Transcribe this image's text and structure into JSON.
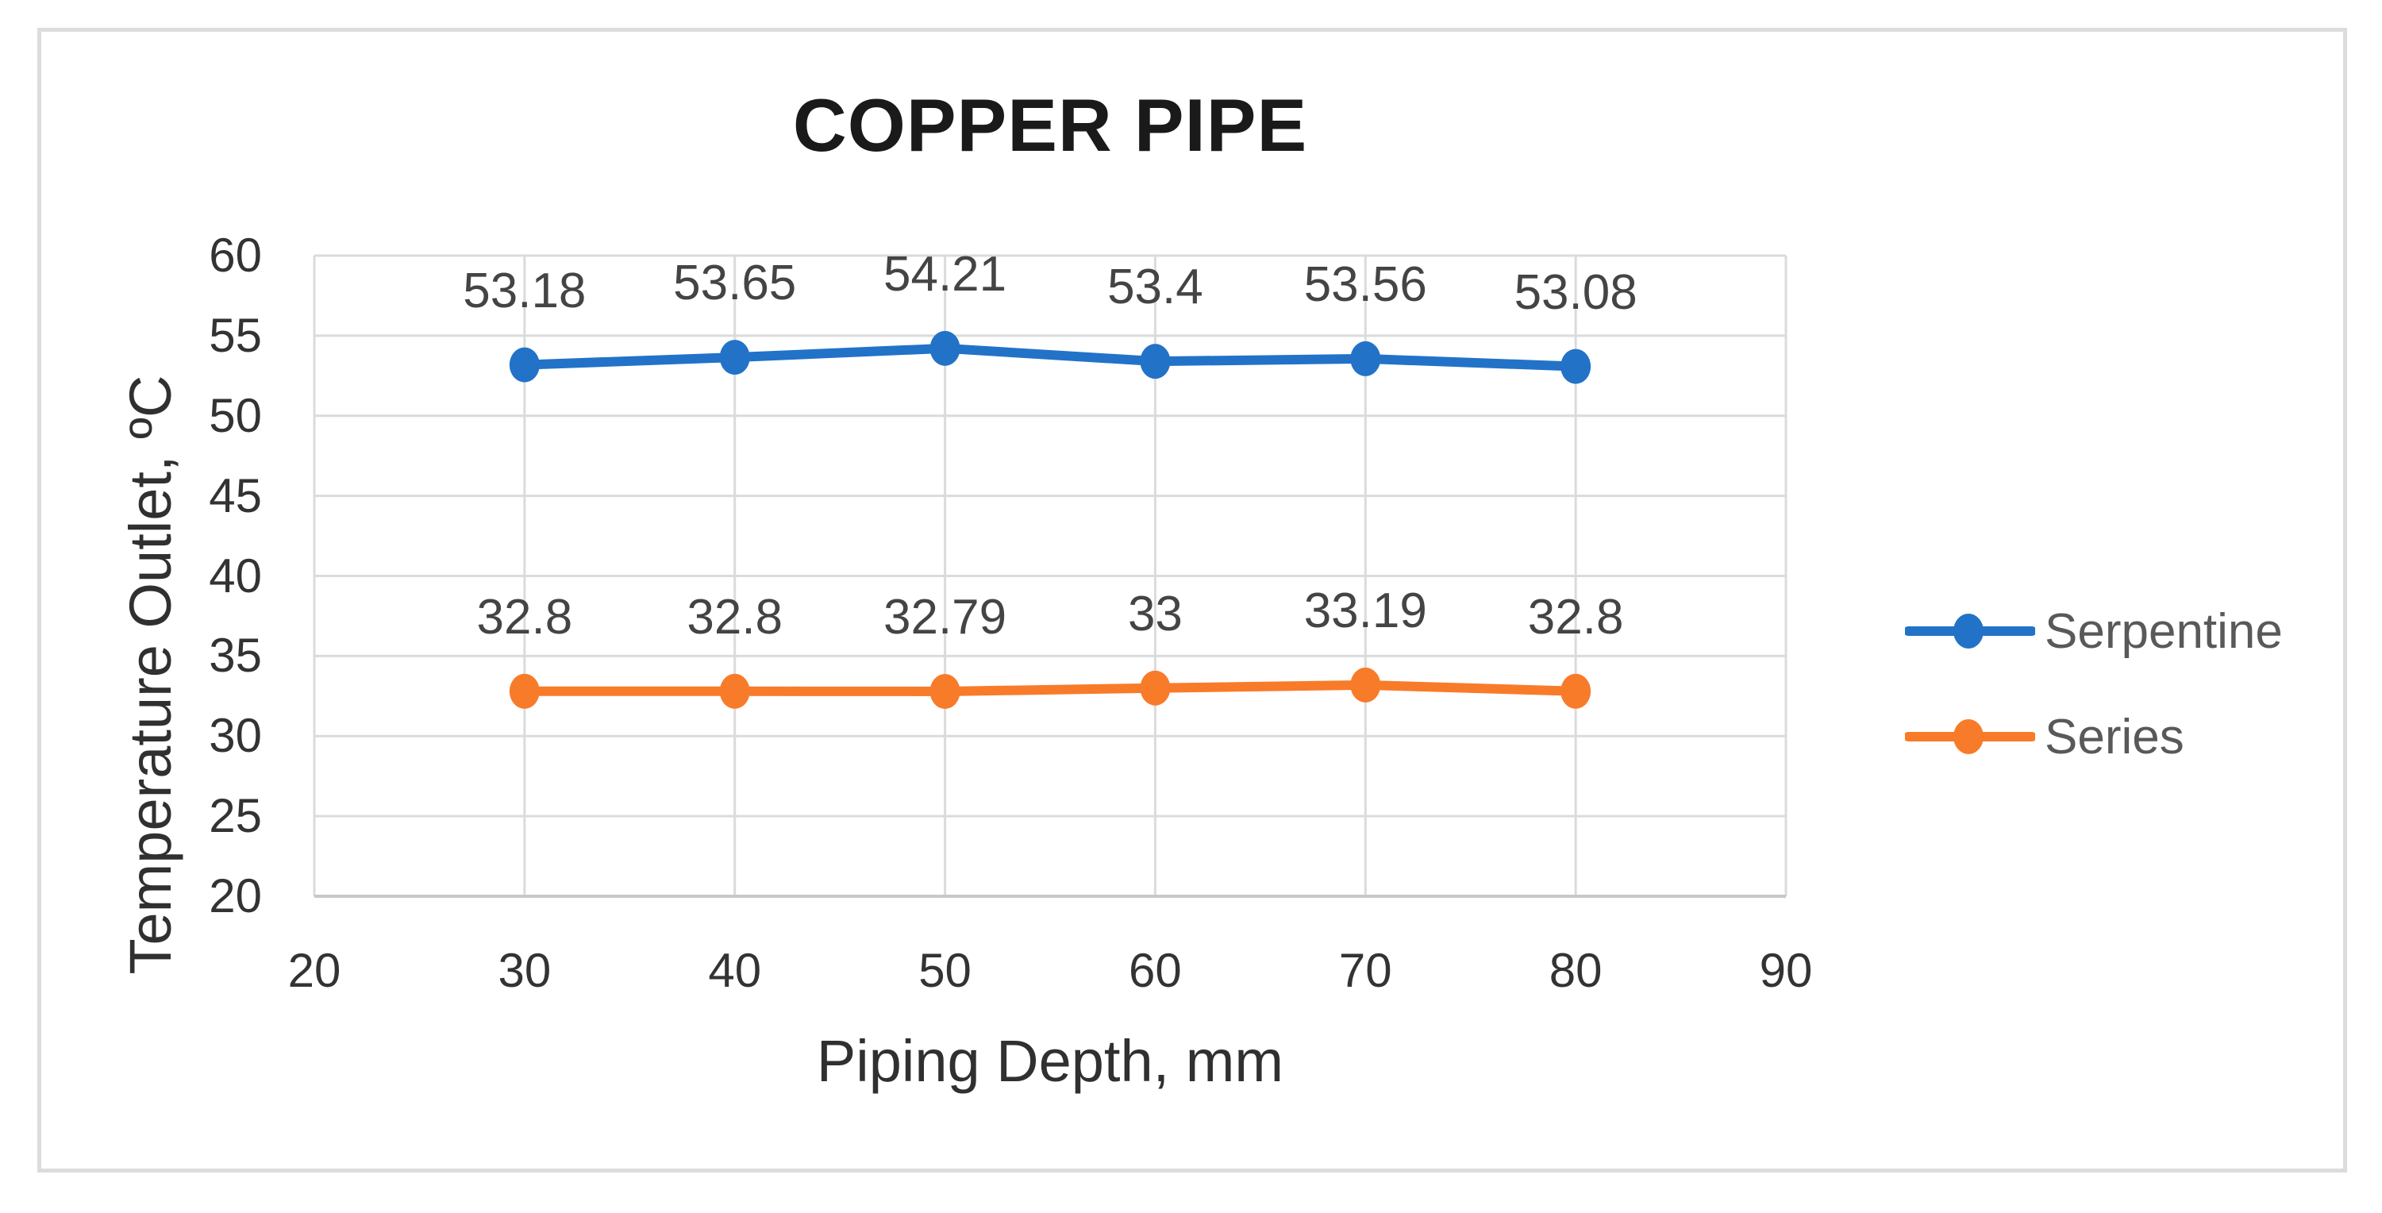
{
  "chart_data": {
    "type": "line",
    "title": "COPPER PIPE",
    "xlabel": "Piping Depth, mm",
    "ylabel": "Temperature Outlet, ºC",
    "x": [
      30,
      40,
      50,
      60,
      70,
      80
    ],
    "series": [
      {
        "name": "Serpentine",
        "color": "#2272C8",
        "values": [
          53.18,
          53.65,
          54.21,
          53.4,
          53.56,
          53.08
        ],
        "labels": [
          "53.18",
          "53.65",
          "54.21",
          "53.4",
          "53.56",
          "53.08"
        ]
      },
      {
        "name": "Series",
        "color": "#F87B2A",
        "values": [
          32.8,
          32.8,
          32.79,
          33,
          33.19,
          32.8
        ],
        "labels": [
          "32.8",
          "32.8",
          "32.79",
          "33",
          "33.19",
          "32.8"
        ]
      }
    ],
    "xlim": [
      20,
      90
    ],
    "ylim": [
      20,
      60
    ],
    "xticks": [
      "20",
      "30",
      "40",
      "50",
      "60",
      "70",
      "80",
      "90"
    ],
    "yticks": [
      "20",
      "25",
      "30",
      "35",
      "40",
      "45",
      "50",
      "55",
      "60"
    ],
    "grid": true,
    "legend_position": "right",
    "data_labels": "above points"
  },
  "colors": {
    "background": "#FFFFFF",
    "frame_border": "#DCDCDC",
    "gridline": "#DBDBDB",
    "axis_line": "#C8C8C8",
    "tick_text": "#333333",
    "data_label_text": "#444444",
    "legend_text": "#595959",
    "title_text": "#1A1A1A",
    "series_blue": "#2272C8",
    "series_orange": "#F87B2A"
  }
}
